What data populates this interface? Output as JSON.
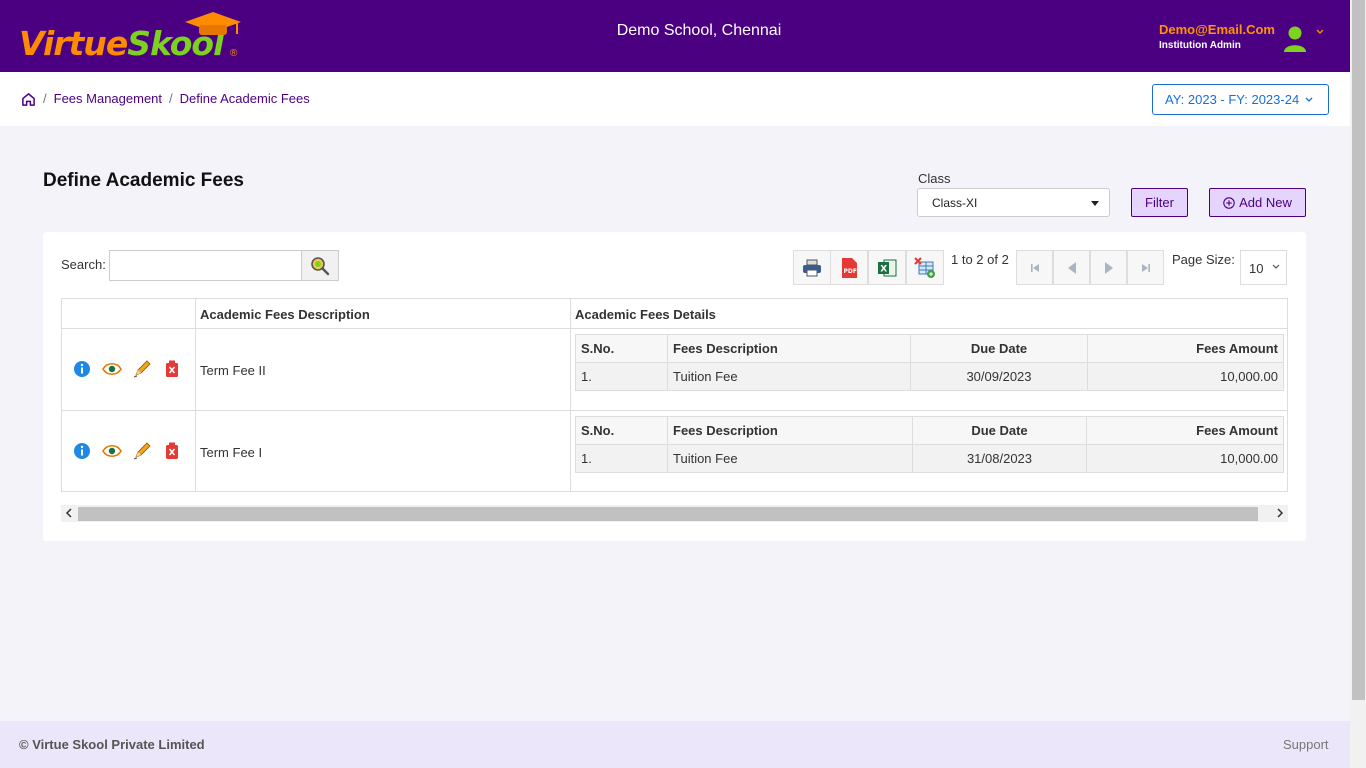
{
  "header": {
    "logo_text_1": "Virtue",
    "logo_text_2": "Skool",
    "logo_reg": "®",
    "school_name": "Demo School, Chennai",
    "user_email": "Demo@Email.Com",
    "user_role": "Institution Admin",
    "brand_color": "#4b0082"
  },
  "breadcrumb": {
    "items": [
      "Fees Management",
      "Define Academic Fees"
    ],
    "separator": "/"
  },
  "academic_year": "AY: 2023 - FY: 2023-24",
  "page": {
    "title": "Define Academic Fees",
    "class_label": "Class",
    "class_value": "Class-XI",
    "filter_label": "Filter",
    "add_new_label": "Add New"
  },
  "toolbar": {
    "search_label": "Search:",
    "search_value": "",
    "pager_text": "1 to 2 of 2",
    "page_size_label": "Page Size:",
    "page_size_value": "10"
  },
  "grid": {
    "headers": [
      "Academic Fees Description",
      "Academic Fees Details"
    ],
    "sub_headers": [
      "S.No.",
      "Fees Description",
      "Due Date",
      "Fees Amount"
    ],
    "rows": [
      {
        "description": "Term Fee II",
        "details": [
          {
            "sno": "1.",
            "fees_description": "Tuition Fee",
            "due_date": "30/09/2023",
            "amount": "10,000.00"
          }
        ]
      },
      {
        "description": "Term Fee I",
        "details": [
          {
            "sno": "1.",
            "fees_description": "Tuition Fee",
            "due_date": "31/08/2023",
            "amount": "10,000.00"
          }
        ]
      }
    ]
  },
  "footer": {
    "copyright": "© Virtue Skool Private Limited",
    "support": "Support"
  }
}
